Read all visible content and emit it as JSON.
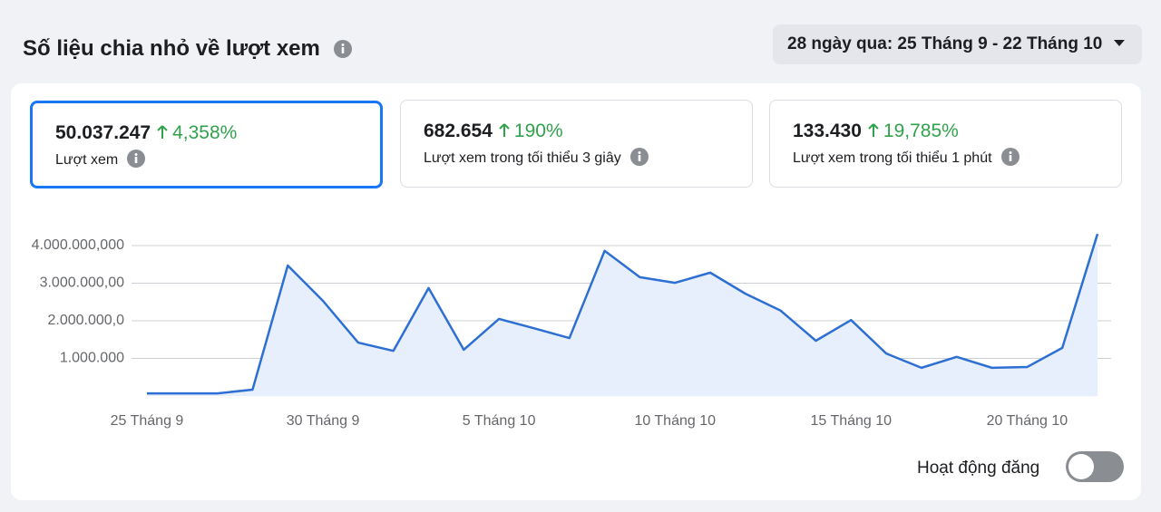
{
  "header": {
    "title": "Số liệu chia nhỏ về lượt xem"
  },
  "date_picker": {
    "label": "28 ngày qua: 25 Tháng 9 - 22 Tháng 10"
  },
  "metrics": [
    {
      "value": "50.037.247",
      "change": "4,358%",
      "label": "Lượt xem"
    },
    {
      "value": "682.654",
      "change": "190%",
      "label": "Lượt xem trong tối thiểu 3 giây"
    },
    {
      "value": "133.430",
      "change": "19,785%",
      "label": "Lượt xem trong tối thiểu 1 phút"
    }
  ],
  "chart_data": {
    "type": "area",
    "categories": [
      "25 Tháng 9",
      null,
      null,
      null,
      null,
      "30 Tháng 9",
      null,
      null,
      null,
      null,
      "5 Tháng 10",
      null,
      null,
      null,
      null,
      "10 Tháng 10",
      null,
      null,
      null,
      null,
      "15 Tháng 10",
      null,
      null,
      null,
      null,
      "20 Tháng 10",
      null,
      null
    ],
    "series": [
      {
        "name": "Lượt xem",
        "color": "#2d6fd2",
        "values": [
          70000,
          70000,
          70000,
          170000,
          3470000,
          2530000,
          1420000,
          1200000,
          2870000,
          1230000,
          2050000,
          1800000,
          1540000,
          3860000,
          3160000,
          3010000,
          3280000,
          2720000,
          2270000,
          1470000,
          2020000,
          1130000,
          750000,
          1040000,
          750000,
          770000,
          1280000,
          4310000
        ]
      }
    ],
    "ylim": [
      0,
      4400000
    ],
    "yticks": [
      {
        "value": 1000000,
        "label": "1.000.000"
      },
      {
        "value": 2000000,
        "label": "2.000.000,0"
      },
      {
        "value": 3000000,
        "label": "3.000.000,00"
      },
      {
        "value": 4000000,
        "label": "4.000.000,000"
      }
    ],
    "grid": true
  },
  "toggle": {
    "label": "Hoạt động đăng"
  }
}
